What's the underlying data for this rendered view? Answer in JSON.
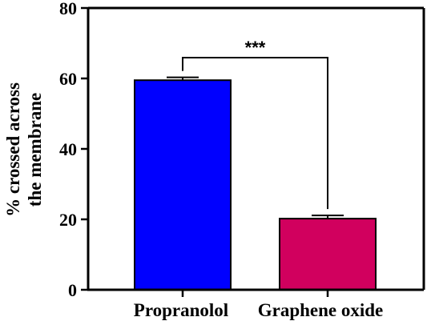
{
  "chart_data": {
    "type": "bar",
    "categories": [
      "Propranolol",
      "Graphene oxide"
    ],
    "values": [
      59.5,
      20.2
    ],
    "errors": [
      0.8,
      0.9
    ],
    "colors": [
      "#0000ff",
      "#d1005e"
    ],
    "ylabel_lines": [
      "% crossed across",
      "the membrane"
    ],
    "ylim": [
      0,
      80
    ],
    "yticks": [
      0,
      20,
      40,
      60,
      80
    ],
    "significance": {
      "label": "***",
      "between": [
        0,
        1
      ]
    },
    "grid": false
  }
}
